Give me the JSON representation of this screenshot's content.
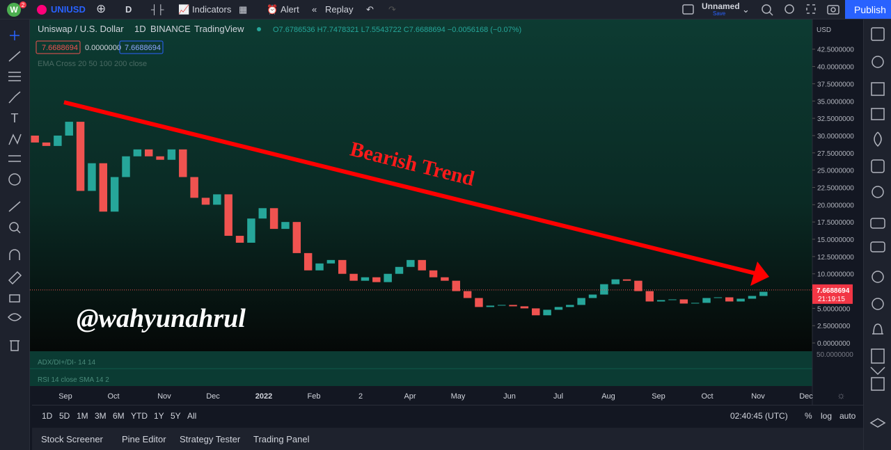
{
  "toolbar": {
    "avatar": "W",
    "badge": "2",
    "symbol": "UNIUSD",
    "interval": "D",
    "indicators": "Indicators",
    "alert": "Alert",
    "replay": "Replay",
    "layout_name": "Unnamed",
    "save": "Save",
    "publish": "Publish"
  },
  "legend": {
    "title": "Uniswap / U.S. Dollar",
    "interval": "1D",
    "exchange": "BINANCE",
    "source": "TradingView",
    "ohlc": "O7.6786536 H7.7478321 L7.5543722 C7.6688694 −0.0056168 (−0.07%)",
    "sell": "7.6688694",
    "spread": "0.0000000",
    "buy": "7.6688694",
    "ema": "EMA Cross 20 50 100 200 close"
  },
  "chart_data": {
    "type": "candlestick",
    "currency": "USD",
    "categories": [
      null,
      null,
      null,
      null,
      null,
      null,
      null,
      null,
      null,
      null,
      null,
      null,
      null,
      null,
      null,
      null,
      null,
      null,
      null,
      null,
      null,
      null,
      null,
      null,
      null,
      null,
      null,
      null,
      null,
      null,
      null,
      null,
      null,
      null,
      null,
      null,
      null,
      null,
      null,
      null,
      null,
      null,
      null,
      null,
      null,
      null,
      null,
      null,
      null,
      null,
      null,
      null,
      null,
      null,
      null,
      null,
      null,
      null,
      null,
      null,
      null,
      null,
      null,
      null,
      null
    ],
    "open": [
      30,
      29,
      28.5,
      30,
      32,
      22,
      26,
      19,
      24,
      27,
      28,
      27,
      26.5,
      28,
      24,
      21,
      20,
      21.5,
      15.5,
      14.5,
      18,
      19.5,
      16.5,
      17.5,
      13,
      10.5,
      11.5,
      12,
      10,
      9,
      9.5,
      8.8,
      10,
      11,
      12,
      10.5,
      9.5,
      9,
      7.5,
      6.5,
      5.2,
      5.4,
      5.5,
      5.3,
      5,
      4,
      4.8,
      5.2,
      5.5,
      6.5,
      7,
      8.5,
      9.2,
      9,
      7.5,
      6,
      6.2,
      6.3,
      5.7,
      5.8,
      6.5,
      6.6,
      6,
      6.4,
      6.8
    ],
    "close": [
      29,
      28.5,
      30,
      32,
      22,
      26,
      19,
      24,
      27,
      28,
      27,
      26.5,
      28,
      24,
      21,
      20,
      21.5,
      15.5,
      14.5,
      18,
      19.5,
      16.5,
      17.5,
      13,
      10.5,
      11.5,
      12,
      10,
      9,
      9.5,
      8.8,
      10,
      11,
      12,
      10.5,
      9.5,
      9,
      7.5,
      6.5,
      5.2,
      5.4,
      5.5,
      5.3,
      5,
      4,
      4.8,
      5.2,
      5.5,
      6.5,
      7,
      8.5,
      9.2,
      9,
      7.5,
      6,
      6.2,
      6.3,
      5.7,
      5.8,
      6.5,
      6.6,
      6,
      6.4,
      6.8,
      7.4
    ],
    "up_color": "#26a69a",
    "down_color": "#ef5350",
    "ylim": [
      -1.2,
      46.8
    ],
    "yticks": [
      {
        "value": 0,
        "label": "0.0000000"
      },
      {
        "value": 2.5,
        "label": "2.5000000"
      },
      {
        "value": 5,
        "label": "5.0000000"
      },
      {
        "value": 7.5,
        "label": "7.5000000"
      },
      {
        "value": 10,
        "label": "10.0000000"
      },
      {
        "value": 12.5,
        "label": "12.5000000"
      },
      {
        "value": 15,
        "label": "15.0000000"
      },
      {
        "value": 17.5,
        "label": "17.5000000"
      },
      {
        "value": 20,
        "label": "20.0000000"
      },
      {
        "value": 22.5,
        "label": "22.5000000"
      },
      {
        "value": 25,
        "label": "25.0000000"
      },
      {
        "value": 27.5,
        "label": "27.5000000"
      },
      {
        "value": 30,
        "label": "30.0000000"
      },
      {
        "value": 32.5,
        "label": "32.5000000"
      },
      {
        "value": 35,
        "label": "35.0000000"
      },
      {
        "value": 37.5,
        "label": "37.5000000"
      },
      {
        "value": 40,
        "label": "40.0000000"
      },
      {
        "value": 42.5,
        "label": "42.5000000"
      }
    ],
    "grid": false,
    "last_price": 7.6688694,
    "countdown": "21:19:15",
    "x_labels": [
      "Sep",
      "Oct",
      "Nov",
      "Dec",
      "2022",
      "Feb",
      "2",
      "Apr",
      "May",
      "Jun",
      "Jul",
      "Aug",
      "Sep",
      "Oct",
      "Nov",
      "Dec"
    ],
    "trend_label": "Bearish Trend",
    "watermark": "@wahyunahrul"
  },
  "indicators": {
    "adx": "ADX/DI+/DI- 14 14",
    "rsi": "RSI 14 close SMA 14 2",
    "pane_scale": "50.0000000"
  },
  "bottom_bar": {
    "ranges": [
      "1D",
      "5D",
      "1M",
      "3M",
      "6M",
      "YTD",
      "1Y",
      "5Y",
      "All"
    ],
    "clock": "02:40:45 (UTC)",
    "scale": [
      "%",
      "log",
      "auto"
    ]
  },
  "tabs": [
    "Stock Screener",
    "Pine Editor",
    "Strategy Tester",
    "Trading Panel"
  ]
}
